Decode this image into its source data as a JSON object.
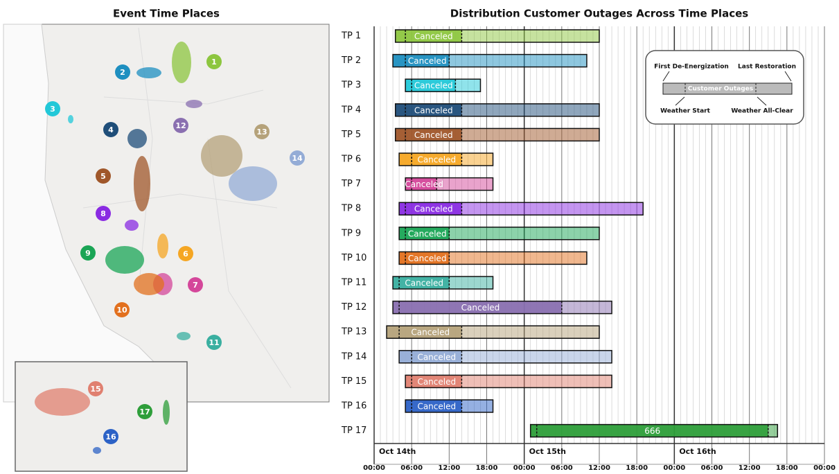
{
  "map": {
    "title": "Event Time Places",
    "markers": [
      "1",
      "2",
      "3",
      "4",
      "5",
      "6",
      "7",
      "8",
      "9",
      "10",
      "11",
      "12",
      "13",
      "14",
      "15",
      "16",
      "17"
    ]
  },
  "chart_data": {
    "type": "gantt",
    "title": "Distribution Customer Outages Across Time Places",
    "xlim": [
      0,
      72
    ],
    "xticks": [
      {
        "value": 0,
        "label": "00:00"
      },
      {
        "value": 6,
        "label": "06:00"
      },
      {
        "value": 12,
        "label": "12:00"
      },
      {
        "value": 18,
        "label": "18:00"
      },
      {
        "value": 24,
        "label": "00:00"
      },
      {
        "value": 30,
        "label": "06:00"
      },
      {
        "value": 36,
        "label": "12:00"
      },
      {
        "value": 42,
        "label": "18:00"
      },
      {
        "value": 48,
        "label": "00:00"
      },
      {
        "value": 54,
        "label": "06:00"
      },
      {
        "value": 60,
        "label": "12:00"
      },
      {
        "value": 66,
        "label": "18:00"
      },
      {
        "value": 72,
        "label": "00:00"
      }
    ],
    "date_ticks": [
      {
        "value": 0,
        "label": "Oct 14th"
      },
      {
        "value": 24,
        "label": "Oct 15th"
      },
      {
        "value": 48,
        "label": "Oct 16th"
      }
    ],
    "tasks": [
      {
        "name": "TP 1",
        "color": "#8dc63f",
        "start": 3.4,
        "weather_start": 5,
        "weather_all_clear": 14,
        "end": 36,
        "label": "Canceled"
      },
      {
        "name": "TP 2",
        "color": "#1e8fc0",
        "start": 3,
        "weather_start": 5,
        "weather_all_clear": 12,
        "end": 34,
        "label": "Canceled"
      },
      {
        "name": "TP 3",
        "color": "#22c8d8",
        "start": 5,
        "weather_start": 6,
        "weather_all_clear": 13,
        "end": 17,
        "label": "Canceled"
      },
      {
        "name": "TP 4",
        "color": "#1f4e79",
        "start": 3.4,
        "weather_start": 5,
        "weather_all_clear": 14,
        "end": 36,
        "label": "Canceled"
      },
      {
        "name": "TP 5",
        "color": "#a0572a",
        "start": 3.4,
        "weather_start": 5,
        "weather_all_clear": 14,
        "end": 36,
        "label": "Canceled"
      },
      {
        "name": "TP 6",
        "color": "#f5a623",
        "start": 4,
        "weather_start": 6,
        "weather_all_clear": 14,
        "end": 19,
        "label": "Canceled"
      },
      {
        "name": "TP 7",
        "color": "#d4479a",
        "start": 5,
        "weather_start": 6,
        "weather_all_clear": 10,
        "end": 19,
        "label": "Canceled"
      },
      {
        "name": "TP 8",
        "color": "#8a2be2",
        "start": 4,
        "weather_start": 5,
        "weather_all_clear": 14,
        "end": 43,
        "label": "Canceled"
      },
      {
        "name": "TP 9",
        "color": "#1aa555",
        "start": 4,
        "weather_start": 5,
        "weather_all_clear": 12,
        "end": 36,
        "label": "Canceled"
      },
      {
        "name": "TP 10",
        "color": "#e2701e",
        "start": 4,
        "weather_start": 5,
        "weather_all_clear": 12,
        "end": 34,
        "label": "Canceled"
      },
      {
        "name": "TP 11",
        "color": "#3aafa0",
        "start": 3,
        "weather_start": 4,
        "weather_all_clear": 12,
        "end": 19,
        "label": "Canceled"
      },
      {
        "name": "TP 12",
        "color": "#8a6fb0",
        "start": 3,
        "weather_start": 4,
        "weather_all_clear": 30,
        "end": 38,
        "label": "Canceled"
      },
      {
        "name": "TP 13",
        "color": "#b5a27a",
        "start": 2,
        "weather_start": 4,
        "weather_all_clear": 14,
        "end": 36,
        "label": "Canceled"
      },
      {
        "name": "TP 14",
        "color": "#94acd6",
        "start": 4,
        "weather_start": 6,
        "weather_all_clear": 14,
        "end": 38,
        "label": "Canceled"
      },
      {
        "name": "TP 15",
        "color": "#e08070",
        "start": 5,
        "weather_start": 6,
        "weather_all_clear": 14,
        "end": 38,
        "label": "Canceled"
      },
      {
        "name": "TP 16",
        "color": "#2c62c6",
        "start": 5,
        "weather_start": 6,
        "weather_all_clear": 14,
        "end": 19,
        "label": "Canceled"
      },
      {
        "name": "TP 17",
        "color": "#2e9e3a",
        "start": 25,
        "weather_start": 26,
        "weather_all_clear": 63,
        "end": 64.5,
        "label": "666"
      }
    ],
    "legend": {
      "first_deenergization": "First De-Energization",
      "last_restoration": "Last Restoration",
      "bar": "Customer Outages",
      "weather_start": "Weather Start",
      "weather_all_clear": "Weather All-Clear"
    }
  }
}
